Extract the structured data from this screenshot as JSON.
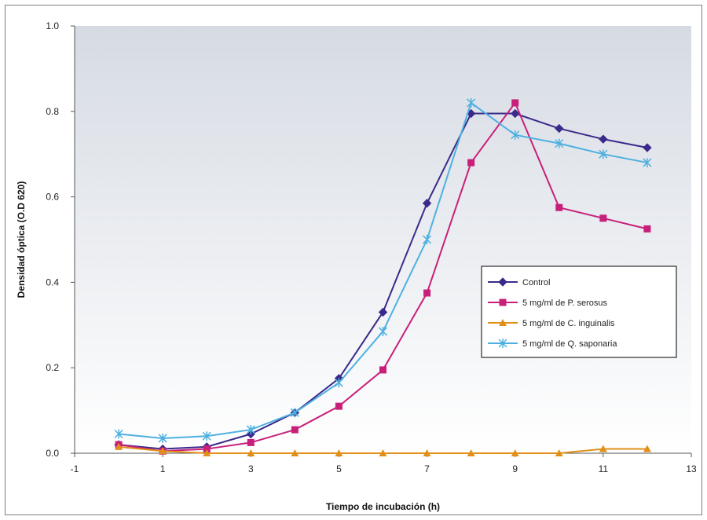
{
  "chart_data": {
    "type": "line",
    "xlabel": "Tiempo de incubación (h)",
    "ylabel": "Densidad óptica (O.D 620)",
    "xlim": [
      -1,
      13
    ],
    "ylim": [
      0,
      1.0
    ],
    "x_ticks": [
      -1,
      1,
      3,
      5,
      7,
      9,
      11,
      13
    ],
    "x_tick_labels": [
      "-1",
      "1",
      "3",
      "5",
      "7",
      "9",
      "11",
      "13"
    ],
    "y_ticks": [
      0,
      0.2,
      0.4,
      0.6,
      0.8,
      1.0
    ],
    "y_tick_labels": [
      "0.0",
      "0.2",
      "0.4",
      "0.6",
      "0.8",
      "1.0"
    ],
    "grid": false,
    "legend_position": "right-middle",
    "x": [
      0,
      1,
      2,
      3,
      4,
      5,
      6,
      7,
      8,
      9,
      10,
      11,
      12
    ],
    "series": [
      {
        "name": "Control",
        "marker": "diamond",
        "color": "#3b2a8a",
        "values": [
          0.02,
          0.01,
          0.015,
          0.045,
          0.095,
          0.175,
          0.33,
          0.585,
          0.795,
          0.795,
          0.76,
          0.735,
          0.715
        ]
      },
      {
        "name": "5 mg/ml de P. serosus",
        "marker": "square",
        "color": "#c8207a",
        "values": [
          0.02,
          0.005,
          0.01,
          0.025,
          0.055,
          0.11,
          0.195,
          0.375,
          0.68,
          0.82,
          0.575,
          0.55,
          0.525
        ]
      },
      {
        "name": "5 mg/ml de C. inguinalis",
        "marker": "triangle",
        "color": "#e0901a",
        "values": [
          0.015,
          0.005,
          0.0,
          0.0,
          0.0,
          0.0,
          0.0,
          0.0,
          0.0,
          0.0,
          0.0,
          0.01,
          0.01
        ]
      },
      {
        "name": "5 mg/ml de Q. saponaria",
        "marker": "star",
        "color": "#4fb0e0",
        "values": [
          0.045,
          0.035,
          0.04,
          0.055,
          0.095,
          0.165,
          0.285,
          0.5,
          0.82,
          0.745,
          0.725,
          0.7,
          0.68
        ]
      }
    ]
  }
}
